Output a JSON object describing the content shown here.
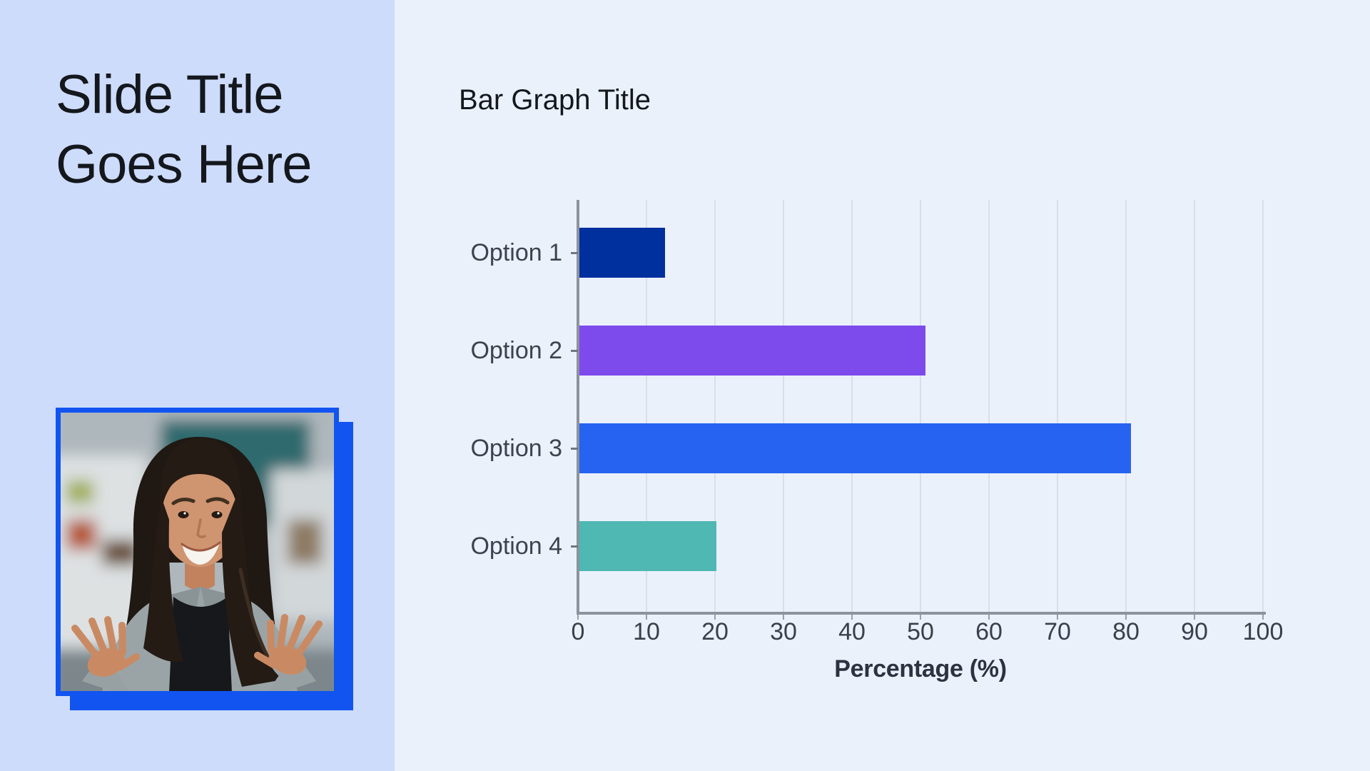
{
  "slide": {
    "left_panel": {
      "background": "#CEDCFB",
      "title_lines": [
        "Slide Title",
        "Goes Here"
      ],
      "photo": {
        "border_color": "#1254F0",
        "shadow_color": "#1254F0"
      }
    },
    "right_panel": {
      "background": "#EAF1FB"
    }
  },
  "chart_data": {
    "type": "bar",
    "orientation": "horizontal",
    "title": "Bar Graph Title",
    "categories": [
      "Option 1",
      "Option 2",
      "Option 3",
      "Option 4"
    ],
    "values": [
      12.5,
      50.5,
      80.5,
      20
    ],
    "series_colors": [
      "#002F9E",
      "#7D4BEC",
      "#2663F0",
      "#4FB8B3"
    ],
    "xlabel": "Percentage (%)",
    "xlim": [
      0,
      100
    ],
    "xticks": [
      0,
      10,
      20,
      30,
      40,
      50,
      60,
      70,
      80,
      90,
      100
    ],
    "grid": true,
    "legend": false,
    "gridline_color": "#D9DFE8",
    "axis_color": "#8D939C",
    "tick_text_color": "#39404C"
  }
}
